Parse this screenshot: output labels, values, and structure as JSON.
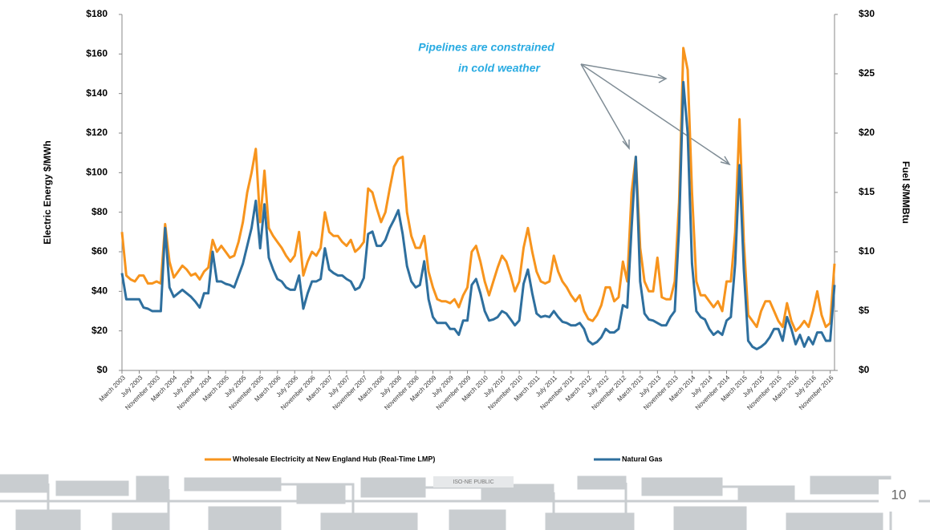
{
  "chart_data": {
    "type": "line",
    "annotation": [
      "Pipelines  are constrained",
      "in cold weather"
    ],
    "ylabel": "Electric  Energy $/MWh",
    "y2label": "Fuel $/MMBtu",
    "ylim": [
      0,
      180
    ],
    "yticks": [
      {
        "value": 0,
        "label": "$0"
      },
      {
        "value": 20,
        "label": "$20"
      },
      {
        "value": 40,
        "label": "$40"
      },
      {
        "value": 60,
        "label": "$60"
      },
      {
        "value": 80,
        "label": "$80"
      },
      {
        "value": 100,
        "label": "$100"
      },
      {
        "value": 120,
        "label": "$120"
      },
      {
        "value": 140,
        "label": "$140"
      },
      {
        "value": 160,
        "label": "$160"
      },
      {
        "value": 180,
        "label": "$180"
      }
    ],
    "y2lim": [
      0,
      30
    ],
    "y2ticks": [
      {
        "value": 0,
        "label": "$0"
      },
      {
        "value": 5,
        "label": "$5"
      },
      {
        "value": 10,
        "label": "$10"
      },
      {
        "value": 15,
        "label": "$15"
      },
      {
        "value": 20,
        "label": "$20"
      },
      {
        "value": 25,
        "label": "$25"
      },
      {
        "value": 30,
        "label": "$30"
      }
    ],
    "categories": [
      "March 2003",
      null,
      null,
      null,
      "July 2003",
      null,
      null,
      null,
      "November 2003",
      null,
      null,
      null,
      "March 2004",
      null,
      null,
      null,
      "July 2004",
      null,
      null,
      null,
      "November 2004",
      null,
      null,
      null,
      "March 2005",
      null,
      null,
      null,
      "July 2005",
      null,
      null,
      null,
      "November 2005",
      null,
      null,
      null,
      "March 2006",
      null,
      null,
      null,
      "July 2006",
      null,
      null,
      null,
      "November 2006",
      null,
      null,
      null,
      "March 2007",
      null,
      null,
      null,
      "July 2007",
      null,
      null,
      null,
      "November 2007",
      null,
      null,
      null,
      "March 2008",
      null,
      null,
      null,
      "July 2008",
      null,
      null,
      null,
      "November 2008",
      null,
      null,
      null,
      "March 2009",
      null,
      null,
      null,
      "July 2009",
      null,
      null,
      null,
      "November 2009",
      null,
      null,
      null,
      "March 2010",
      null,
      null,
      null,
      "July 2010",
      null,
      null,
      null,
      "November 2010",
      null,
      null,
      null,
      "March 2011",
      null,
      null,
      null,
      "July 2011",
      null,
      null,
      null,
      "November 2011",
      null,
      null,
      null,
      "March 2012",
      null,
      null,
      null,
      "July 2012",
      null,
      null,
      null,
      "November 2012",
      null,
      null,
      null,
      "March 2013",
      null,
      null,
      null,
      "July 2013",
      null,
      null,
      null,
      "November 2013",
      null,
      null,
      null,
      "March 2014",
      null,
      null,
      null,
      "July 2014",
      null,
      null,
      null,
      "November 2014",
      null,
      null,
      null,
      "March 2015",
      null,
      null,
      null,
      "July 2015",
      null,
      null,
      null,
      "November 2015",
      null,
      null,
      null,
      "March 2016",
      null,
      null,
      null,
      "July 2016",
      null,
      null,
      null,
      "November 2016",
      null
    ],
    "series": [
      {
        "name": "Wholesale Electricity at New England Hub (Real-Time LMP)",
        "color": "#f7941d",
        "axis": "y",
        "values": [
          70,
          48,
          46,
          45,
          48,
          48,
          44,
          44,
          45,
          44,
          74,
          55,
          47,
          50,
          53,
          51,
          48,
          49,
          46,
          50,
          52,
          66,
          60,
          63,
          60,
          57,
          58,
          65,
          75,
          90,
          100,
          112,
          75,
          101,
          72,
          68,
          65,
          62,
          58,
          55,
          58,
          70,
          48,
          55,
          60,
          58,
          62,
          80,
          70,
          68,
          68,
          65,
          63,
          66,
          60,
          62,
          65,
          92,
          90,
          82,
          75,
          80,
          92,
          103,
          107,
          108,
          80,
          68,
          62,
          62,
          68,
          50,
          42,
          36,
          35,
          35,
          34,
          36,
          32,
          38,
          42,
          60,
          63,
          55,
          45,
          38,
          45,
          52,
          58,
          55,
          48,
          40,
          45,
          62,
          72,
          60,
          50,
          45,
          44,
          45,
          58,
          50,
          45,
          42,
          38,
          35,
          38,
          30,
          26,
          25,
          28,
          33,
          42,
          42,
          35,
          37,
          55,
          45,
          90,
          108,
          62,
          45,
          40,
          40,
          57,
          37,
          36,
          36,
          45,
          85,
          163,
          152,
          90,
          45,
          38,
          38,
          35,
          32,
          35,
          30,
          45,
          45,
          70,
          127,
          65,
          28,
          25,
          22,
          30,
          35,
          35,
          30,
          25,
          22,
          34,
          25,
          20,
          22,
          25,
          22,
          30,
          40,
          28,
          22,
          24,
          54
        ]
      },
      {
        "name": "Natural Gas",
        "color": "#2e6f9e",
        "axis": "y2",
        "values": [
          8.2,
          6,
          6,
          6,
          6,
          5.3,
          5.2,
          5,
          5,
          5,
          12,
          7,
          6.2,
          6.5,
          6.8,
          6.5,
          6.2,
          5.8,
          5.3,
          6.5,
          6.5,
          10,
          7.5,
          7.5,
          7.3,
          7.2,
          7,
          8,
          9,
          10.5,
          12,
          14.3,
          10.3,
          14,
          9.5,
          8.5,
          7.7,
          7.5,
          7,
          6.8,
          6.8,
          8,
          5.2,
          6.5,
          7.5,
          7.5,
          7.7,
          10.3,
          8.5,
          8.2,
          8,
          8,
          7.7,
          7.5,
          6.8,
          7,
          7.8,
          11.5,
          11.7,
          10.5,
          10.5,
          11,
          12,
          12.7,
          13.5,
          11.5,
          8.8,
          7.5,
          7,
          7.2,
          9.2,
          6,
          4.5,
          4,
          4,
          4,
          3.5,
          3.5,
          3,
          4.2,
          4.2,
          7.2,
          7.7,
          6.5,
          5,
          4.2,
          4.3,
          4.5,
          5,
          4.8,
          4.3,
          3.8,
          4.2,
          7.3,
          8.5,
          6.5,
          4.8,
          4.5,
          4.6,
          4.5,
          5,
          4.5,
          4.1,
          4,
          3.8,
          3.8,
          4,
          3.5,
          2.5,
          2.2,
          2.4,
          2.8,
          3.5,
          3.2,
          3.2,
          3.5,
          5.5,
          5.3,
          12,
          18,
          7.5,
          4.8,
          4.3,
          4.2,
          4,
          3.8,
          3.8,
          4.5,
          5,
          12,
          24.3,
          20,
          9,
          5,
          4.5,
          4.3,
          3.5,
          3,
          3.3,
          3,
          4.2,
          4.5,
          9,
          17.3,
          8.5,
          2.5,
          2,
          1.8,
          2,
          2.3,
          2.8,
          3.5,
          3.5,
          2.5,
          4.5,
          3.5,
          2.2,
          3,
          2,
          2.8,
          2.2,
          3.2,
          3.2,
          2.5,
          2.5,
          7.2
        ]
      }
    ]
  },
  "footer_label": "ISO-NE PUBLIC",
  "page_number": "10"
}
